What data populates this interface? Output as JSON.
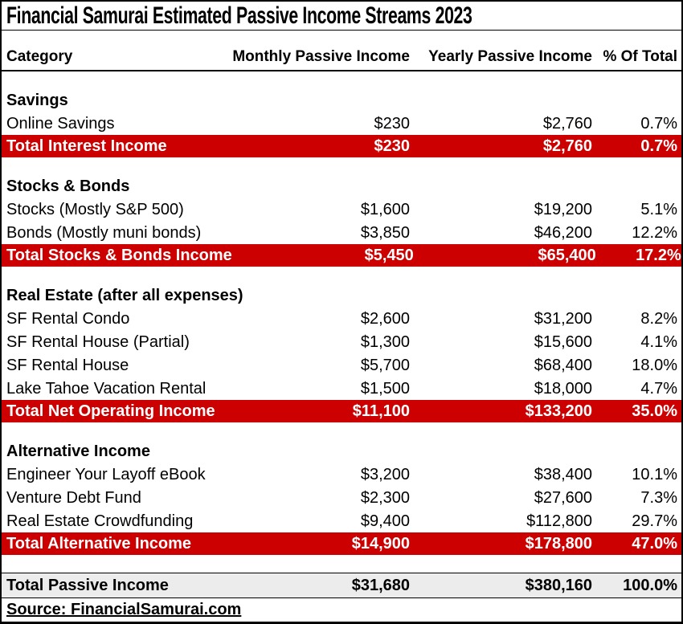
{
  "title": "Financial Samurai Estimated Passive Income Streams 2023",
  "columns": {
    "category": "Category",
    "monthly": "Monthly Passive Income",
    "yearly": "Yearly Passive Income",
    "pct": "% Of Total"
  },
  "colors": {
    "section_total_bg": "#CC0000",
    "section_total_text": "#FFFFFF",
    "grand_total_bg": "#ECECEC",
    "border": "#000000"
  },
  "sections": [
    {
      "heading": "Savings",
      "rows": [
        {
          "label": "Online Savings",
          "monthly": "$230",
          "yearly": "$2,760",
          "pct": "0.7%"
        }
      ],
      "total": {
        "label": "Total Interest Income",
        "monthly": "$230",
        "yearly": "$2,760",
        "pct": "0.7%"
      }
    },
    {
      "heading": "Stocks & Bonds",
      "rows": [
        {
          "label": "Stocks (Mostly S&P 500)",
          "monthly": "$1,600",
          "yearly": "$19,200",
          "pct": "5.1%"
        },
        {
          "label": "Bonds (Mostly muni bonds)",
          "monthly": "$3,850",
          "yearly": "$46,200",
          "pct": "12.2%"
        }
      ],
      "total": {
        "label": "Total Stocks & Bonds Income",
        "monthly": "$5,450",
        "yearly": "$65,400",
        "pct": "17.2%"
      }
    },
    {
      "heading": "Real Estate (after all expenses)",
      "rows": [
        {
          "label": "SF Rental Condo",
          "monthly": "$2,600",
          "yearly": "$31,200",
          "pct": "8.2%"
        },
        {
          "label": "SF Rental House (Partial)",
          "monthly": "$1,300",
          "yearly": "$15,600",
          "pct": "4.1%"
        },
        {
          "label": "SF Rental House",
          "monthly": "$5,700",
          "yearly": "$68,400",
          "pct": "18.0%"
        },
        {
          "label": "Lake Tahoe Vacation Rental",
          "monthly": "$1,500",
          "yearly": "$18,000",
          "pct": "4.7%"
        }
      ],
      "total": {
        "label": "Total Net Operating Income",
        "monthly": "$11,100",
        "yearly": "$133,200",
        "pct": "35.0%"
      }
    },
    {
      "heading": "Alternative Income",
      "rows": [
        {
          "label": "Engineer Your Layoff eBook",
          "monthly": "$3,200",
          "yearly": "$38,400",
          "pct": "10.1%"
        },
        {
          "label": "Venture Debt Fund",
          "monthly": "$2,300",
          "yearly": "$27,600",
          "pct": "7.3%"
        },
        {
          "label": "Real Estate Crowdfunding",
          "monthly": "$9,400",
          "yearly": "$112,800",
          "pct": "29.7%"
        }
      ],
      "total": {
        "label": "Total Alternative Income",
        "monthly": "$14,900",
        "yearly": "$178,800",
        "pct": "47.0%"
      }
    }
  ],
  "grand_total": {
    "label": "Total Passive Income",
    "monthly": "$31,680",
    "yearly": "$380,160",
    "pct": "100.0%"
  },
  "source": "Source: FinancialSamurai.com",
  "chart_data": {
    "type": "table",
    "title": "Financial Samurai Estimated Passive Income Streams 2023",
    "columns": [
      "Category",
      "Monthly Passive Income",
      "Yearly Passive Income",
      "% Of Total"
    ],
    "sections": [
      {
        "name": "Savings",
        "items": [
          {
            "category": "Online Savings",
            "monthly": 230,
            "yearly": 2760,
            "pct_of_total": 0.7
          }
        ],
        "total": {
          "category": "Total Interest Income",
          "monthly": 230,
          "yearly": 2760,
          "pct_of_total": 0.7
        }
      },
      {
        "name": "Stocks & Bonds",
        "items": [
          {
            "category": "Stocks (Mostly S&P 500)",
            "monthly": 1600,
            "yearly": 19200,
            "pct_of_total": 5.1
          },
          {
            "category": "Bonds (Mostly muni bonds)",
            "monthly": 3850,
            "yearly": 46200,
            "pct_of_total": 12.2
          }
        ],
        "total": {
          "category": "Total Stocks & Bonds Income",
          "monthly": 5450,
          "yearly": 65400,
          "pct_of_total": 17.2
        }
      },
      {
        "name": "Real Estate (after all expenses)",
        "items": [
          {
            "category": "SF Rental Condo",
            "monthly": 2600,
            "yearly": 31200,
            "pct_of_total": 8.2
          },
          {
            "category": "SF Rental House (Partial)",
            "monthly": 1300,
            "yearly": 15600,
            "pct_of_total": 4.1
          },
          {
            "category": "SF Rental House",
            "monthly": 5700,
            "yearly": 68400,
            "pct_of_total": 18.0
          },
          {
            "category": "Lake Tahoe Vacation Rental",
            "monthly": 1500,
            "yearly": 18000,
            "pct_of_total": 4.7
          }
        ],
        "total": {
          "category": "Total Net Operating Income",
          "monthly": 11100,
          "yearly": 133200,
          "pct_of_total": 35.0
        }
      },
      {
        "name": "Alternative Income",
        "items": [
          {
            "category": "Engineer Your Layoff eBook",
            "monthly": 3200,
            "yearly": 38400,
            "pct_of_total": 10.1
          },
          {
            "category": "Venture Debt Fund",
            "monthly": 2300,
            "yearly": 27600,
            "pct_of_total": 7.3
          },
          {
            "category": "Real Estate Crowdfunding",
            "monthly": 9400,
            "yearly": 112800,
            "pct_of_total": 29.7
          }
        ],
        "total": {
          "category": "Total Alternative Income",
          "monthly": 14900,
          "yearly": 178800,
          "pct_of_total": 47.0
        }
      }
    ],
    "grand_total": {
      "category": "Total Passive Income",
      "monthly": 31680,
      "yearly": 380160,
      "pct_of_total": 100.0
    },
    "source": "Source: FinancialSamurai.com"
  }
}
